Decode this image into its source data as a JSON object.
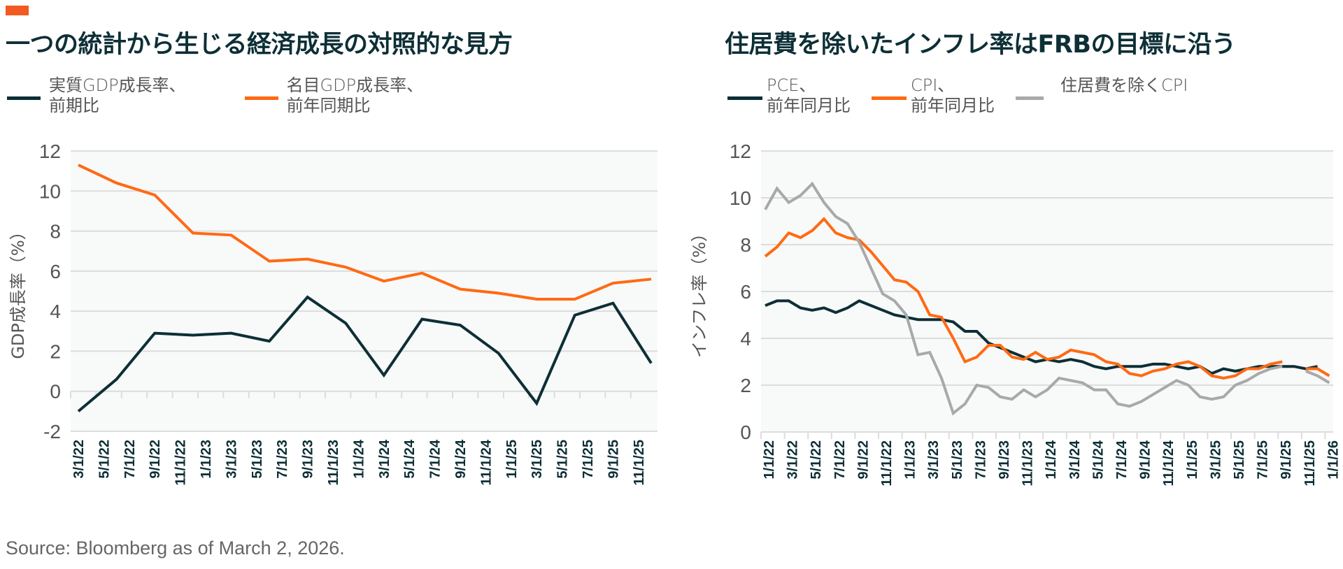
{
  "page": {
    "accent_color": "#f15a22",
    "source": "Source: Bloomberg as of March 2, 2026."
  },
  "colors": {
    "navy": "#0d2f36",
    "orange": "#ff6a13",
    "gray": "#a9a9a9",
    "grid": "#dcdcdc",
    "plot_bg": "#f8f9f9"
  },
  "chart_data": [
    {
      "type": "line",
      "title": "一つの統計から生じる経済成長の対照的な見方",
      "xlabel": "",
      "ylabel": "GDP成長率（%）",
      "ylim": [
        -2,
        12
      ],
      "yticks": [
        12,
        10,
        8,
        6,
        4,
        2,
        0,
        -2
      ],
      "grid": true,
      "legend_position": "top-left",
      "x_tick_labels": [
        "3/1/22",
        "5/1/22",
        "7/1/22",
        "9/1/22",
        "11/1/22",
        "1/1/23",
        "3/1/23",
        "5/1/23",
        "7/1/23",
        "9/1/23",
        "11/1/23",
        "1/1/24",
        "3/1/24",
        "5/1/24",
        "7/1/24",
        "9/1/24",
        "11/1/24",
        "1/1/25",
        "3/1/25",
        "5/1/25",
        "7/1/25",
        "9/1/25",
        "11/1/25"
      ],
      "x": [
        "2022-03",
        "2022-06",
        "2022-09",
        "2022-12",
        "2023-03",
        "2023-06",
        "2023-09",
        "2023-12",
        "2024-03",
        "2024-06",
        "2024-09",
        "2024-12",
        "2025-03",
        "2025-06",
        "2025-09",
        "2025-12"
      ],
      "series": [
        {
          "name": "実質GDP成長率、\n前期比",
          "color": "#0d2f36",
          "values": [
            -1.0,
            0.6,
            2.9,
            2.8,
            2.9,
            2.5,
            4.7,
            3.4,
            0.8,
            3.6,
            3.3,
            1.9,
            -0.6,
            3.8,
            4.4,
            1.4
          ]
        },
        {
          "name": "名目GDP成長率、\n前年同期比",
          "color": "#ff6a13",
          "values": [
            11.3,
            10.4,
            9.8,
            7.9,
            7.8,
            6.5,
            6.6,
            6.2,
            5.5,
            5.9,
            5.1,
            4.9,
            4.6,
            4.6,
            5.4,
            5.6
          ]
        }
      ]
    },
    {
      "type": "line",
      "title": "住居費を除いたインフレ率はFRBの目標に沿う",
      "xlabel": "",
      "ylabel": "インフレ率（%）",
      "ylim": [
        0,
        12
      ],
      "yticks": [
        12,
        10,
        8,
        6,
        4,
        2,
        0
      ],
      "grid": true,
      "legend_position": "top-left",
      "x_tick_labels": [
        "1/1/22",
        "3/1/22",
        "5/1/22",
        "7/1/22",
        "9/1/22",
        "11/1/22",
        "1/1/23",
        "3/1/23",
        "5/1/23",
        "7/1/23",
        "9/1/23",
        "11/1/23",
        "1/1/24",
        "3/1/24",
        "5/1/24",
        "7/1/24",
        "9/1/24",
        "11/1/24",
        "1/1/25",
        "3/1/25",
        "5/1/25",
        "7/1/25",
        "9/1/25",
        "11/1/25",
        "1/1/26"
      ],
      "x_start": "2022-01",
      "x_end": "2026-01",
      "frequency": "monthly",
      "series": [
        {
          "name": "PCE、\n前年同月比",
          "color": "#0d2f36",
          "values": [
            5.4,
            5.6,
            5.6,
            5.3,
            5.2,
            5.3,
            5.1,
            5.3,
            5.6,
            5.4,
            5.2,
            5.0,
            4.9,
            4.8,
            4.8,
            4.8,
            4.7,
            4.3,
            4.3,
            3.8,
            3.6,
            3.4,
            3.2,
            3.0,
            3.1,
            3.0,
            3.1,
            3.0,
            2.8,
            2.7,
            2.8,
            2.8,
            2.8,
            2.9,
            2.9,
            2.8,
            2.7,
            2.8,
            2.5,
            2.7,
            2.6,
            2.7,
            2.8,
            2.8,
            2.8,
            2.8,
            2.7,
            2.8,
            null
          ]
        },
        {
          "name": "CPI、\n前年同月比",
          "color": "#ff6a13",
          "values": [
            7.5,
            7.9,
            8.5,
            8.3,
            8.6,
            9.1,
            8.5,
            8.3,
            8.2,
            7.7,
            7.1,
            6.5,
            6.4,
            6.0,
            5.0,
            4.9,
            4.0,
            3.0,
            3.2,
            3.7,
            3.7,
            3.2,
            3.1,
            3.4,
            3.1,
            3.2,
            3.5,
            3.4,
            3.3,
            3.0,
            2.9,
            2.5,
            2.4,
            2.6,
            2.7,
            2.9,
            3.0,
            2.8,
            2.4,
            2.3,
            2.4,
            2.7,
            2.7,
            2.9,
            3.0,
            null,
            2.7,
            2.7,
            2.4
          ]
        },
        {
          "name": "住居費を除くCPI",
          "color": "#a9a9a9",
          "values": [
            9.5,
            10.4,
            9.8,
            10.1,
            10.6,
            9.8,
            9.2,
            8.9,
            8.1,
            7.0,
            5.9,
            5.6,
            5.0,
            3.3,
            3.4,
            2.3,
            0.8,
            1.2,
            2.0,
            1.9,
            1.5,
            1.4,
            1.8,
            1.5,
            1.8,
            2.3,
            2.2,
            2.1,
            1.8,
            1.8,
            1.2,
            1.1,
            1.3,
            1.6,
            1.9,
            2.2,
            2.0,
            1.5,
            1.4,
            1.5,
            2.0,
            2.2,
            2.5,
            2.7,
            2.8,
            null,
            2.6,
            2.4,
            2.1
          ]
        }
      ]
    }
  ]
}
